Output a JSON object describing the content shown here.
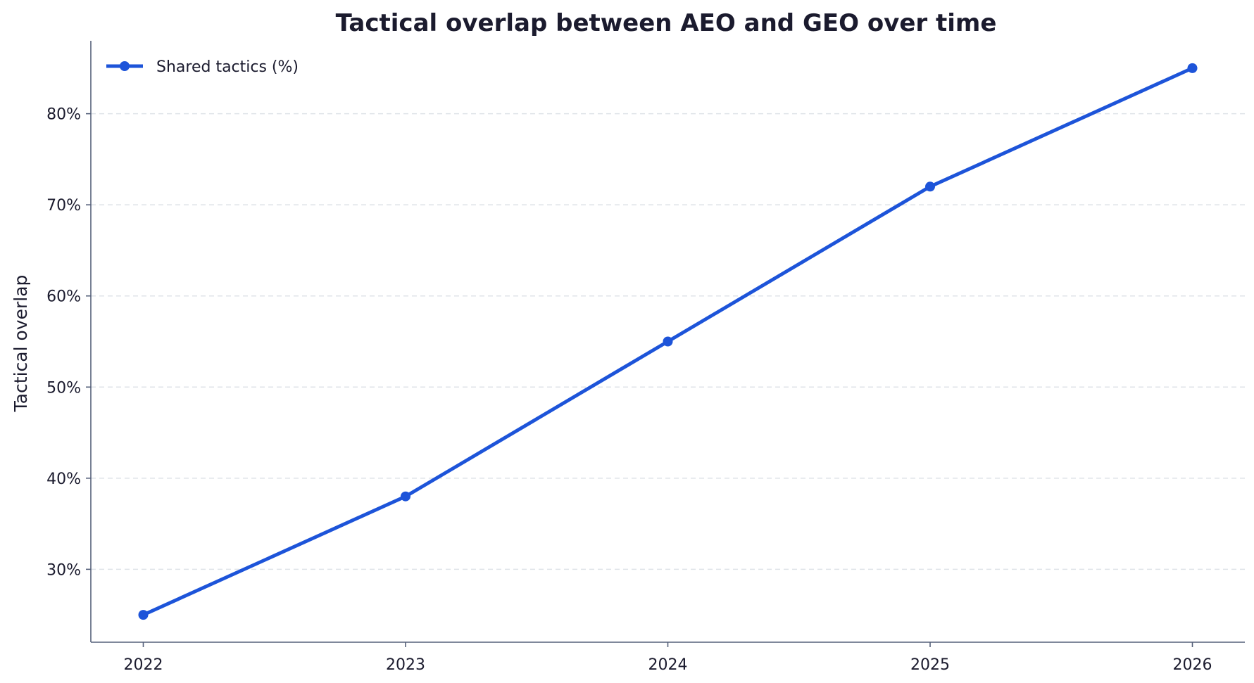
{
  "chart_data": {
    "type": "line",
    "title": "Tactical overlap between AEO and GEO over time",
    "xlabel": "",
    "ylabel": "Tactical overlap",
    "x": [
      2022,
      2023,
      2024,
      2025,
      2026
    ],
    "x_tick_labels": [
      "2022",
      "2023",
      "2024",
      "2025",
      "2026"
    ],
    "series": [
      {
        "name": "Shared tactics (%)",
        "values": [
          25,
          38,
          55,
          72,
          85
        ],
        "color": "#1d54d9",
        "marker": "circle"
      }
    ],
    "y_ticks": [
      30,
      40,
      50,
      60,
      70,
      80
    ],
    "y_tick_labels": [
      "30%",
      "40%",
      "50%",
      "60%",
      "70%",
      "80%"
    ],
    "xlim": [
      2021.8,
      2026.2
    ],
    "ylim": [
      22,
      88
    ],
    "grid": "horizontal dashed",
    "legend_position": "top-left"
  }
}
